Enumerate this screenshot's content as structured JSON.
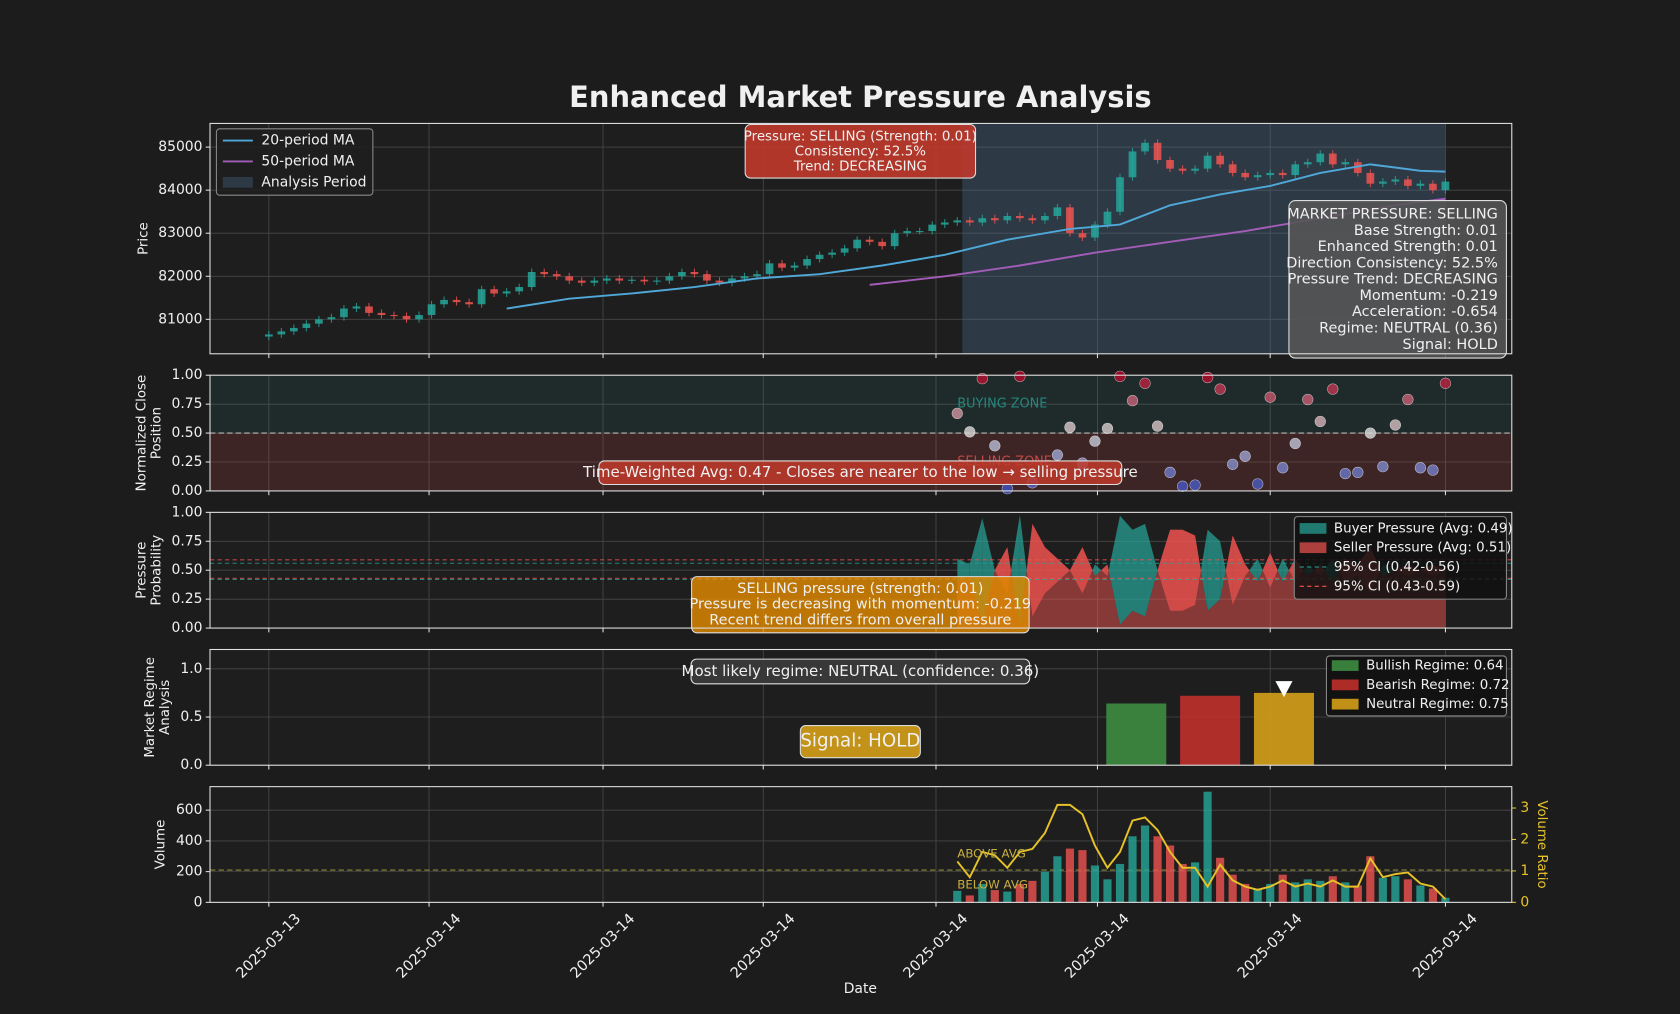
{
  "title": "Enhanced Market Pressure Analysis",
  "x_axis": {
    "label": "Date",
    "xlim": [
      -4.7,
      99.3
    ],
    "xticks": [
      {
        "value": 0,
        "label": "2025-03-13"
      },
      {
        "value": 12.8,
        "label": "2025-03-14"
      },
      {
        "value": 26.7,
        "label": "2025-03-14"
      },
      {
        "value": 39.5,
        "label": "2025-03-14"
      },
      {
        "value": 53.3,
        "label": "2025-03-14"
      },
      {
        "value": 66.2,
        "label": "2025-03-14"
      },
      {
        "value": 80,
        "label": "2025-03-14"
      },
      {
        "value": 94,
        "label": "2025-03-14"
      }
    ]
  },
  "chart_data": [
    {
      "type": "candlestick",
      "y_label": [
        "Price"
      ],
      "grid": true,
      "legend": "upper left",
      "ylim": [
        80200,
        85550
      ],
      "yticks": [
        81000,
        82000,
        83000,
        84000,
        85000
      ],
      "up_color": "#26a69a",
      "down_color": "#ef5350",
      "x": [
        0,
        1,
        2,
        3,
        4,
        5,
        6,
        7,
        8,
        9,
        10,
        11,
        12,
        13,
        14,
        15,
        16,
        17,
        18,
        19,
        20,
        21,
        22,
        23,
        24,
        25,
        26,
        27,
        28,
        29,
        30,
        31,
        32,
        33,
        34,
        35,
        36,
        37,
        38,
        39,
        40,
        41,
        42,
        43,
        44,
        45,
        46,
        47,
        48,
        49,
        50,
        51,
        52,
        53,
        54,
        55,
        56,
        57,
        58,
        59,
        60,
        61,
        62,
        63,
        64,
        65,
        66,
        67,
        68,
        69,
        70,
        71,
        72,
        73,
        74,
        75,
        76,
        77,
        78,
        79,
        80,
        81,
        82,
        83,
        84,
        85,
        86,
        87,
        88,
        89,
        90,
        91,
        92,
        93,
        94
      ],
      "open": [
        80600,
        80650,
        80720,
        80800,
        80900,
        81000,
        81050,
        81250,
        81300,
        81150,
        81100,
        81080,
        81000,
        81100,
        81350,
        81450,
        81400,
        81350,
        81700,
        81600,
        81650,
        81750,
        82100,
        82050,
        82000,
        81900,
        81850,
        81900,
        81950,
        81900,
        81920,
        81880,
        81900,
        82000,
        82100,
        82050,
        81900,
        81850,
        81950,
        82000,
        82050,
        82300,
        82200,
        82250,
        82400,
        82500,
        82550,
        82650,
        82850,
        82800,
        82700,
        83000,
        83050,
        83050,
        83200,
        83250,
        83300,
        83250,
        83350,
        83300,
        83400,
        83350,
        83300,
        83400,
        83600,
        83000,
        82900,
        83200,
        83500,
        84300,
        84900,
        85100,
        84700,
        84500,
        84450,
        84500,
        84800,
        84600,
        84400,
        84300,
        84350,
        84400,
        84350,
        84600,
        84650,
        84850,
        84600,
        84650,
        84400,
        84150,
        84200,
        84250,
        84100,
        84150,
        84000
      ],
      "high": [
        80730,
        80800,
        80880,
        80980,
        81080,
        81130,
        81330,
        81380,
        81380,
        81230,
        81180,
        81160,
        81180,
        81430,
        81530,
        81530,
        81480,
        81780,
        81780,
        81730,
        81830,
        82180,
        82180,
        82130,
        82080,
        81980,
        81980,
        82030,
        82030,
        82000,
        82000,
        81980,
        82080,
        82180,
        82180,
        82130,
        81980,
        82030,
        82080,
        82130,
        82380,
        82380,
        82330,
        82480,
        82580,
        82630,
        82730,
        82930,
        82930,
        82880,
        83080,
        83130,
        83130,
        83280,
        83330,
        83380,
        83380,
        83430,
        83430,
        83480,
        83480,
        83430,
        83480,
        83680,
        83680,
        83080,
        83280,
        83580,
        84380,
        84980,
        85180,
        85180,
        84780,
        84580,
        84580,
        84880,
        84880,
        84680,
        84480,
        84430,
        84480,
        84480,
        84680,
        84730,
        84930,
        84930,
        84730,
        84730,
        84480,
        84280,
        84330,
        84330,
        84230,
        84230,
        84280
      ],
      "low": [
        80520,
        80570,
        80640,
        80720,
        80820,
        80920,
        80970,
        81170,
        81070,
        81020,
        81000,
        80920,
        80920,
        81020,
        81270,
        81320,
        81270,
        81270,
        81520,
        81520,
        81570,
        81670,
        81970,
        81920,
        81820,
        81770,
        81770,
        81820,
        81820,
        81820,
        81800,
        81800,
        81820,
        81920,
        81970,
        81820,
        81770,
        81770,
        81870,
        81920,
        81970,
        82120,
        82120,
        82170,
        82320,
        82420,
        82470,
        82570,
        82720,
        82620,
        82620,
        82920,
        82970,
        82970,
        83120,
        83170,
        83170,
        83170,
        83220,
        83220,
        83270,
        83220,
        83220,
        83320,
        82920,
        82820,
        82820,
        83120,
        83420,
        84220,
        84820,
        84620,
        84420,
        84370,
        84370,
        84420,
        84520,
        84320,
        84220,
        84220,
        84270,
        84270,
        84270,
        84520,
        84570,
        84520,
        84520,
        84320,
        84070,
        84070,
        84120,
        84020,
        84020,
        83920,
        83920
      ],
      "close": [
        80650,
        80720,
        80800,
        80900,
        81000,
        81050,
        81250,
        81300,
        81150,
        81100,
        81080,
        81000,
        81100,
        81350,
        81450,
        81400,
        81350,
        81700,
        81600,
        81650,
        81750,
        82100,
        82050,
        82000,
        81900,
        81850,
        81900,
        81950,
        81900,
        81920,
        81880,
        81900,
        82000,
        82100,
        82050,
        81900,
        81850,
        81950,
        82000,
        82050,
        82300,
        82200,
        82250,
        82400,
        82500,
        82550,
        82650,
        82850,
        82800,
        82700,
        83000,
        83050,
        83050,
        83200,
        83250,
        83300,
        83250,
        83350,
        83300,
        83400,
        83350,
        83300,
        83400,
        83600,
        83000,
        82900,
        83200,
        83500,
        84300,
        84900,
        85100,
        84700,
        84500,
        84450,
        84500,
        84800,
        84600,
        84400,
        84300,
        84350,
        84400,
        84350,
        84600,
        84650,
        84850,
        84600,
        84650,
        84400,
        84150,
        84200,
        84250,
        84100,
        84150,
        84000,
        84200
      ],
      "series": [
        {
          "name": "20-period MA",
          "color": "#4fa8d8",
          "x": [
            19,
            24,
            29,
            34,
            39,
            44,
            49,
            54,
            59,
            64,
            68,
            72,
            76,
            80,
            84,
            88,
            92,
            94
          ],
          "values": [
            81250,
            81480,
            81600,
            81750,
            81950,
            82050,
            82250,
            82500,
            82850,
            83100,
            83200,
            83650,
            83900,
            84100,
            84400,
            84600,
            84450,
            84430
          ]
        },
        {
          "name": "50-period MA",
          "color": "#a35db8",
          "x": [
            48,
            54,
            60,
            66,
            72,
            78,
            84,
            90,
            94
          ],
          "values": [
            81800,
            82000,
            82250,
            82550,
            82800,
            83050,
            83350,
            83650,
            83800
          ]
        }
      ],
      "analysis_period": {
        "name": "Analysis Period",
        "range": [
          55.4,
          94
        ],
        "color": "#4a7090"
      },
      "annotation": {
        "lines": [
          "Pressure: SELLING (Strength: 0.01)",
          "Consistency: 52.5%",
          "Trend: DECREASING"
        ],
        "color": "#c0392b"
      },
      "info_box": [
        "MARKET PRESSURE: SELLING",
        "Base Strength: 0.01",
        "Enhanced Strength: 0.01",
        "Direction Consistency: 52.5%",
        "Pressure Trend: DECREASING",
        "Momentum: -0.219",
        "Acceleration: -0.654",
        "Regime: NEUTRAL (0.36)",
        "Signal: HOLD"
      ]
    },
    {
      "type": "scatter",
      "y_label": [
        "Normalized Close",
        "Position"
      ],
      "grid": true,
      "colormap": "coolwarm",
      "ylim": [
        0,
        1
      ],
      "yticks": [
        {
          "value": 0,
          "label": "0.00"
        },
        {
          "value": 0.25,
          "label": "0.25"
        },
        {
          "value": 0.5,
          "label": "0.50"
        },
        {
          "value": 0.75,
          "label": "0.75"
        },
        {
          "value": 1,
          "label": "1.00"
        }
      ],
      "x": [
        55,
        56,
        57,
        58,
        59,
        60,
        61,
        63,
        64,
        65,
        66,
        67,
        68,
        69,
        70,
        71,
        72,
        73,
        74,
        75,
        76,
        77,
        78,
        79,
        80,
        81,
        82,
        83,
        84,
        85,
        86,
        87,
        88,
        89,
        90,
        91,
        92,
        93,
        94
      ],
      "values": [
        0.67,
        0.51,
        0.97,
        0.39,
        0.02,
        0.99,
        0.07,
        0.31,
        0.55,
        0.24,
        0.43,
        0.54,
        0.99,
        0.78,
        0.93,
        0.56,
        0.16,
        0.04,
        0.05,
        0.98,
        0.88,
        0.23,
        0.3,
        0.06,
        0.81,
        0.2,
        0.41,
        0.79,
        0.6,
        0.88,
        0.15,
        0.16,
        0.5,
        0.21,
        0.57,
        0.79,
        0.2,
        0.18,
        0.93
      ],
      "threshold": 0.5,
      "zones": [
        {
          "label": "BUYING ZONE",
          "range": [
            0.5,
            1
          ],
          "color": "#26a69a"
        },
        {
          "label": "SELLING ZONE",
          "range": [
            0,
            0.5
          ],
          "color": "#ef5350"
        }
      ],
      "annotation": {
        "lines": [
          "Time-Weighted Avg: 0.47 - Closes are nearer to the low → selling pressure"
        ],
        "color": "#c0392b"
      }
    },
    {
      "type": "area",
      "y_label": [
        "Pressure",
        "Probability"
      ],
      "grid": true,
      "legend": "upper right",
      "ylim": [
        0,
        1
      ],
      "yticks": [
        {
          "value": 0,
          "label": "0.00"
        },
        {
          "value": 0.25,
          "label": "0.25"
        },
        {
          "value": 0.5,
          "label": "0.50"
        },
        {
          "value": 0.75,
          "label": "0.75"
        },
        {
          "value": 1,
          "label": "1.00"
        }
      ],
      "x": [
        55,
        56,
        57,
        58,
        59,
        60,
        61,
        62,
        63,
        64,
        65,
        66,
        67,
        68,
        69,
        70,
        71,
        72,
        73,
        74,
        75,
        76,
        77,
        78,
        79,
        80,
        81,
        82,
        83,
        84,
        85,
        86,
        87,
        88,
        89,
        90,
        91,
        92,
        93,
        94
      ],
      "series": [
        {
          "name": "Buyer Pressure (Avg: 0.49)",
          "color": "#26a69a",
          "values": [
            0.6,
            0.55,
            0.95,
            0.5,
            0.3,
            0.98,
            0.1,
            0.3,
            0.4,
            0.5,
            0.3,
            0.55,
            0.45,
            0.97,
            0.85,
            0.9,
            0.5,
            0.15,
            0.15,
            0.2,
            0.85,
            0.75,
            0.2,
            0.45,
            0.6,
            0.35,
            0.6,
            0.4,
            0.55,
            0.45,
            0.6,
            0.4,
            0.45,
            0.3,
            0.55,
            0.5,
            0.45,
            0.5,
            0.45,
            0.5
          ]
        },
        {
          "name": "Seller Pressure (Avg: 0.51)",
          "color": "#ef5350",
          "values": [
            0.4,
            0.45,
            0.05,
            0.5,
            0.7,
            0.02,
            0.9,
            0.7,
            0.6,
            0.5,
            0.7,
            0.45,
            0.55,
            0.03,
            0.15,
            0.1,
            0.5,
            0.85,
            0.85,
            0.8,
            0.15,
            0.25,
            0.8,
            0.55,
            0.4,
            0.65,
            0.4,
            0.6,
            0.45,
            0.55,
            0.4,
            0.6,
            0.55,
            0.7,
            0.45,
            0.5,
            0.55,
            0.5,
            0.55,
            0.5
          ]
        }
      ],
      "intervals": [
        {
          "name": "95% CI (0.42-0.56)",
          "color": "#26a69a",
          "values": [
            0.42,
            0.56
          ]
        },
        {
          "name": "95% CI (0.43-0.59)",
          "color": "#ef5350",
          "values": [
            0.43,
            0.59
          ]
        }
      ],
      "annotation": {
        "lines": [
          "SELLING pressure (strength: 0.01)",
          "Pressure is decreasing with momentum: -0.219",
          "Recent trend differs from overall pressure"
        ],
        "color": "#e08a00"
      }
    },
    {
      "type": "bar",
      "y_label": [
        "Market Regime",
        "Analysis"
      ],
      "grid": true,
      "legend": "upper right",
      "ylim": [
        0,
        1.2
      ],
      "yticks": [
        {
          "value": 0,
          "label": "0.0"
        },
        {
          "value": 0.5,
          "label": "0.5"
        },
        {
          "value": 1,
          "label": "1.0"
        }
      ],
      "series": [
        {
          "name": "Bullish Regime: 0.64",
          "color": "#3d8c40",
          "x": 69.3,
          "value": 0.64
        },
        {
          "name": "Bearish Regime: 0.72",
          "color": "#c0302b",
          "x": 75.2,
          "value": 0.72
        },
        {
          "name": "Neutral Regime: 0.75",
          "color": "#d4a017",
          "x": 81.1,
          "value": 0.75
        }
      ],
      "annotation": {
        "lines": [
          "Most likely regime: NEUTRAL (confidence: 0.36)"
        ],
        "color": "#3a3a3a"
      },
      "signal": {
        "lines": [
          "Signal: HOLD"
        ],
        "color": "#d4a017"
      }
    },
    {
      "type": "volume",
      "y_label": [
        "Volume"
      ],
      "y2_label": "Volume Ratio",
      "grid": true,
      "ylim": [
        0,
        753
      ],
      "yticks": [
        0,
        200,
        400,
        600
      ],
      "y2lim": [
        0,
        3.68
      ],
      "y2ticks": [
        0,
        1,
        2,
        3
      ],
      "x": [
        55,
        56,
        57,
        58,
        59,
        60,
        61,
        62,
        63,
        64,
        65,
        66,
        67,
        68,
        69,
        70,
        71,
        72,
        73,
        74,
        75,
        76,
        77,
        78,
        79,
        80,
        81,
        82,
        83,
        84,
        85,
        86,
        87,
        88,
        89,
        90,
        91,
        92,
        93,
        94
      ],
      "values": [
        75,
        45,
        120,
        80,
        70,
        120,
        140,
        200,
        300,
        350,
        340,
        240,
        150,
        250,
        430,
        500,
        430,
        370,
        250,
        260,
        720,
        290,
        180,
        120,
        90,
        120,
        180,
        130,
        150,
        140,
        170,
        130,
        110,
        300,
        160,
        170,
        150,
        110,
        90,
        30
      ],
      "average": 210,
      "average_labels": [
        "ABOVE AVG",
        "BELOW AVG"
      ],
      "series": [
        {
          "axis": "y2",
          "color": "#e6c229",
          "values": [
            1.3,
            0.8,
            1.6,
            1.5,
            1.1,
            1.6,
            1.7,
            2.2,
            3.1,
            3.1,
            2.8,
            1.8,
            1.1,
            1.6,
            2.6,
            2.7,
            2.3,
            1.6,
            1.1,
            1.1,
            0.5,
            1.2,
            0.7,
            0.5,
            0.4,
            0.5,
            0.7,
            0.5,
            0.6,
            0.5,
            0.7,
            0.5,
            0.5,
            1.4,
            0.8,
            0.9,
            0.95,
            0.6,
            0.5,
            0.1
          ]
        }
      ]
    }
  ]
}
